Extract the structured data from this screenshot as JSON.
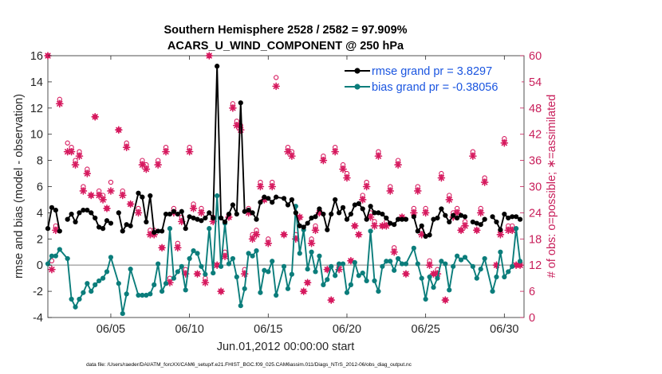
{
  "chart_data": {
    "type": "line",
    "title_line1": "Southern Hemisphere 2528 / 2582 = 97.909%",
    "title_line2": "ACARS_U_WIND_COMPONENT @ 250 hPa",
    "xlabel": "Jun.01,2012 00:00:00 start",
    "ylabel_left": "rmse and bias (model - observation)",
    "ylabel_right": "# of obs: o=possible; ∗=assimilated",
    "footnote": "data file: /Users/raeder/DAI/ATM_forcXX/CAM6_setup/f.e21.FHIST_BGC.f09_025.CAM6assim.011/Diags_NTrS_2012-06/obs_diag_output.nc",
    "xlim": [
      1,
      31.25
    ],
    "ylim_left": [
      -4,
      16
    ],
    "ylim_right": [
      0,
      60
    ],
    "x_ticks": [
      5,
      10,
      15,
      20,
      25,
      30
    ],
    "x_tick_labels": [
      "06/05",
      "06/10",
      "06/15",
      "06/20",
      "06/25",
      "06/30"
    ],
    "y_left_ticks": [
      -4,
      -2,
      0,
      2,
      4,
      6,
      8,
      10,
      12,
      14,
      16
    ],
    "y_left_tick_labels": [
      "-4",
      "-2",
      "0",
      "2",
      "4",
      "6",
      "8",
      "10",
      "12",
      "14",
      "16"
    ],
    "y_right_ticks": [
      0,
      6,
      12,
      18,
      24,
      30,
      36,
      42,
      48,
      54,
      60
    ],
    "y_right_tick_labels": [
      "0",
      "6",
      "12",
      "18",
      "24",
      "30",
      "36",
      "42",
      "48",
      "54",
      "60"
    ],
    "colors": {
      "rmse": "#000000",
      "bias": "#0b7d7b",
      "obs": "#d6195e",
      "zero": "#b0b0b0",
      "legend_text": "#1a55e0",
      "right_axis": "#c81e5a"
    },
    "series": [
      {
        "name": "rmse grand pr = 3.8297",
        "x": [
          1.0,
          1.25,
          1.5,
          1.75,
          2.25,
          2.5,
          2.75,
          3.0,
          3.25,
          3.5,
          3.75,
          4.0,
          4.25,
          4.5,
          4.75,
          5.0,
          5.5,
          5.75,
          6.0,
          6.25,
          6.75,
          7.0,
          7.25,
          7.5,
          7.75,
          8.0,
          8.25,
          8.5,
          8.75,
          9.0,
          9.25,
          9.5,
          9.75,
          10.0,
          10.25,
          10.5,
          10.75,
          11.0,
          11.25,
          11.5,
          11.75,
          12.0,
          12.25,
          12.5,
          12.75,
          13.0,
          13.25,
          13.5,
          13.75,
          14.0,
          14.25,
          14.5,
          14.75,
          15.0,
          15.25,
          15.5,
          16.0,
          16.25,
          16.5,
          16.75,
          17.0,
          17.25,
          17.5,
          17.75,
          18.0,
          18.25,
          18.5,
          18.75,
          19.0,
          19.25,
          19.5,
          19.75,
          20.0,
          20.25,
          20.5,
          20.75,
          21.0,
          21.25,
          21.5,
          21.75,
          22.0,
          22.25,
          22.5,
          22.75,
          23.0,
          23.25,
          23.5,
          23.75,
          24.25,
          24.5,
          24.75,
          25.0,
          25.25,
          25.5,
          25.75,
          26.0,
          26.25,
          26.5,
          26.75,
          27.0,
          27.25,
          27.5,
          28.0,
          28.25,
          28.5,
          28.75,
          29.25,
          29.5,
          29.75,
          30.0,
          30.25,
          30.5,
          30.75,
          31.0
        ],
        "y": [
          2.8,
          4.4,
          4.2,
          2.6,
          3.5,
          3.9,
          3.3,
          4.0,
          4.2,
          4.2,
          4.0,
          3.6,
          2.9,
          2.8,
          3.4,
          3.2,
          4.0,
          2.6,
          3.1,
          3.0,
          5.5,
          5.2,
          3.3,
          5.3,
          2.5,
          2.6,
          2.6,
          3.9,
          3.9,
          4.1,
          3.9,
          4.1,
          2.8,
          3.7,
          3.6,
          3.5,
          3.4,
          3.6,
          4.0,
          3.6,
          15.2,
          3.6,
          3.3,
          3.9,
          4.6,
          3.9,
          12.4,
          4.1,
          4.2,
          4.0,
          3.5,
          4.8,
          5.2,
          5.1,
          4.8,
          5.2,
          5.1,
          4.6,
          5.0,
          4.0,
          3.0,
          2.9,
          3.2,
          3.6,
          3.7,
          4.3,
          3.9,
          2.7,
          3.9,
          5.0,
          4.0,
          4.4,
          3.5,
          3.9,
          4.6,
          4.7,
          4.3,
          3.5,
          4.5,
          4.0,
          4.0,
          3.9,
          3.6,
          3.2,
          3.1,
          3.5,
          3.5,
          3.5,
          3.7,
          2.6,
          3.0,
          2.2,
          2.3,
          3.5,
          3.6,
          4.3,
          3.8,
          3.3,
          3.8,
          3.6,
          3.8,
          3.7,
          3.3,
          3.2,
          3.1,
          3.5,
          3.7,
          3.3,
          2.7,
          3.9,
          3.6,
          3.7,
          3.7,
          3.5
        ],
        "gaps_after_index": [
          3,
          15,
          18,
          63,
          87,
          101,
          105
        ]
      },
      {
        "name": "bias grand pr = -0.38056",
        "x": [
          1.0,
          1.25,
          1.5,
          1.75,
          2.25,
          2.5,
          2.75,
          3.0,
          3.25,
          3.5,
          3.75,
          4.0,
          4.25,
          4.5,
          4.75,
          5.0,
          5.5,
          5.75,
          6.0,
          6.25,
          6.75,
          7.0,
          7.25,
          7.5,
          7.75,
          8.0,
          8.25,
          8.5,
          8.75,
          9.0,
          9.25,
          9.5,
          9.75,
          10.0,
          10.25,
          10.5,
          10.75,
          11.0,
          11.25,
          11.5,
          11.75,
          12.0,
          12.25,
          12.5,
          12.75,
          13.0,
          13.25,
          13.5,
          13.75,
          14.0,
          14.25,
          14.5,
          14.75,
          15.0,
          15.25,
          15.5,
          16.0,
          16.25,
          16.5,
          16.75,
          17.0,
          17.25,
          17.5,
          17.75,
          18.0,
          18.25,
          18.5,
          18.75,
          19.0,
          19.25,
          19.5,
          19.75,
          20.0,
          20.25,
          20.5,
          20.75,
          21.0,
          21.25,
          21.5,
          21.75,
          22.0,
          22.25,
          22.5,
          22.75,
          23.0,
          23.25,
          23.5,
          23.75,
          24.25,
          24.5,
          24.75,
          25.0,
          25.25,
          25.5,
          25.75,
          26.0,
          26.25,
          26.5,
          26.75,
          27.0,
          27.25,
          27.5,
          28.0,
          28.25,
          28.5,
          28.75,
          29.25,
          29.5,
          29.75,
          30.0,
          30.25,
          30.5,
          30.75,
          31.0
        ],
        "y": [
          0.1,
          0.7,
          0.7,
          1.2,
          0.5,
          -2.6,
          -3.2,
          -2.6,
          -2.1,
          -1.4,
          -2.0,
          -1.5,
          -1.2,
          -1.0,
          -0.5,
          0.6,
          -1.4,
          -3.7,
          -2.2,
          -0.3,
          -2.3,
          -2.3,
          -2.3,
          -2.2,
          -1.5,
          0.1,
          -2.0,
          -1.4,
          2.8,
          -1.0,
          -0.5,
          -0.1,
          -1.9,
          0.5,
          1.1,
          0.9,
          -0.1,
          -0.7,
          2.8,
          -0.6,
          5.3,
          -0.1,
          3.2,
          0.1,
          0.5,
          -0.9,
          -3.1,
          -1.8,
          0.9,
          0.7,
          1.1,
          -2.1,
          -0.4,
          -0.5,
          0.3,
          -2.3,
          -0.1,
          -1.8,
          -0.7,
          4.5,
          0.9,
          2.7,
          -0.3,
          1.0,
          -0.5,
          0.7,
          -1.5,
          -1.1,
          -0.1,
          -0.8,
          0.1,
          0.1,
          -2.1,
          -1.5,
          0.2,
          -0.8,
          -0.6,
          -1.2,
          2.6,
          -1.2,
          -2.0,
          -0.1,
          0.3,
          0.3,
          -0.4,
          0.5,
          0.1,
          0.1,
          1.3,
          0.1,
          -1.0,
          -2.6,
          -0.9,
          -1.7,
          -1.0,
          0.3,
          0.1,
          -1.9,
          -0.1,
          0.7,
          0.4,
          0.6,
          -0.1,
          -1.0,
          -0.3,
          0.5,
          -2.0,
          -0.9,
          1.0,
          -0.9,
          -0.5,
          -0.1,
          2.8,
          0.3
        ]
      }
    ],
    "obs_possible": {
      "x": [
        1.0,
        1.25,
        1.5,
        1.75,
        2.25,
        2.5,
        2.75,
        3.0,
        3.25,
        3.5,
        3.75,
        4.0,
        4.25,
        4.5,
        4.75,
        5.0,
        5.5,
        5.75,
        6.0,
        6.25,
        6.75,
        7.0,
        7.25,
        7.5,
        7.75,
        8.0,
        8.25,
        8.5,
        8.75,
        9.0,
        9.25,
        9.5,
        9.75,
        10.0,
        10.25,
        10.5,
        10.75,
        11.0,
        11.25,
        11.5,
        11.75,
        12.0,
        12.25,
        12.5,
        12.75,
        13.0,
        13.25,
        13.5,
        13.75,
        14.0,
        14.25,
        14.5,
        14.75,
        15.0,
        15.25,
        15.5,
        16.0,
        16.25,
        16.5,
        16.75,
        17.0,
        17.25,
        17.5,
        17.75,
        18.0,
        18.25,
        18.5,
        18.75,
        19.0,
        19.25,
        19.5,
        19.75,
        20.0,
        20.25,
        20.5,
        20.75,
        21.0,
        21.25,
        21.5,
        21.75,
        22.0,
        22.25,
        22.5,
        22.75,
        23.0,
        23.25,
        23.5,
        23.75,
        24.25,
        24.5,
        24.75,
        25.0,
        25.25,
        25.5,
        25.75,
        26.0,
        26.25,
        26.5,
        26.75,
        27.0,
        27.25,
        27.5,
        28.0,
        28.25,
        28.5,
        28.75,
        29.25,
        29.5,
        29.75,
        30.0,
        30.25,
        30.5,
        30.75,
        31.0
      ],
      "y": [
        60,
        13,
        21,
        50,
        40,
        39,
        36,
        38,
        30,
        34,
        28,
        46,
        29,
        28,
        25,
        31,
        43,
        29,
        40,
        26,
        25,
        36,
        35,
        20,
        20,
        36,
        16,
        39,
        9,
        25,
        17,
        23,
        11,
        39,
        26,
        10,
        25,
        9,
        60,
        23,
        12,
        6,
        15,
        23,
        49,
        45,
        44,
        11,
        25,
        19,
        20,
        31,
        27,
        18,
        31,
        55,
        19,
        39,
        38,
        19,
        23,
        6,
        8,
        18,
        21,
        24,
        37,
        11,
        4,
        39,
        12,
        35,
        33,
        13,
        21,
        19,
        28,
        31,
        24,
        22,
        38,
        21,
        22,
        30,
        16,
        36,
        23,
        10,
        25,
        30,
        20,
        25,
        13,
        10,
        11,
        33,
        4,
        28,
        24,
        25,
        20,
        22,
        38,
        20,
        25,
        32,
        53,
        12,
        20,
        41,
        21,
        21,
        12,
        12
      ]
    },
    "obs_assimilated": {
      "x": [
        1.0,
        1.25,
        1.5,
        1.75,
        2.25,
        2.5,
        2.75,
        3.0,
        3.25,
        3.5,
        3.75,
        4.0,
        4.25,
        4.5,
        4.75,
        5.0,
        5.5,
        5.75,
        6.0,
        6.25,
        6.75,
        7.0,
        7.25,
        7.5,
        7.75,
        8.0,
        8.25,
        8.5,
        8.75,
        9.0,
        9.25,
        9.5,
        9.75,
        10.0,
        10.25,
        10.5,
        10.75,
        11.0,
        11.25,
        11.5,
        11.75,
        12.0,
        12.25,
        12.5,
        12.75,
        13.0,
        13.25,
        13.5,
        13.75,
        14.0,
        14.25,
        14.5,
        14.75,
        15.0,
        15.25,
        15.5,
        16.0,
        16.25,
        16.5,
        16.75,
        17.0,
        17.25,
        17.5,
        17.75,
        18.0,
        18.25,
        18.5,
        18.75,
        19.0,
        19.25,
        19.5,
        19.75,
        20.0,
        20.25,
        20.5,
        20.75,
        21.0,
        21.25,
        21.5,
        21.75,
        22.0,
        22.25,
        22.5,
        22.75,
        23.0,
        23.25,
        23.5,
        23.75,
        24.25,
        24.5,
        24.75,
        25.0,
        25.25,
        25.5,
        25.75,
        26.0,
        26.25,
        26.5,
        26.75,
        27.0,
        27.25,
        27.5,
        28.0,
        28.25,
        28.5,
        28.75,
        29.25,
        29.5,
        29.75,
        30.0,
        30.25,
        30.5,
        30.75,
        31.0
      ],
      "y": [
        60,
        11,
        20,
        49,
        38,
        38,
        35,
        37,
        29,
        33,
        28,
        46,
        28,
        27,
        25,
        29,
        43,
        28,
        39,
        26,
        24,
        35,
        34,
        19,
        19,
        35,
        16,
        38,
        8,
        24,
        16,
        22,
        10,
        38,
        25,
        10,
        24,
        8,
        60,
        22,
        12,
        6,
        14,
        23,
        48,
        44,
        43,
        10,
        24,
        18,
        19,
        30,
        27,
        17,
        30,
        53,
        19,
        38,
        37,
        18,
        23,
        6,
        8,
        17,
        20,
        24,
        36,
        11,
        4,
        38,
        11,
        34,
        32,
        13,
        21,
        19,
        27,
        30,
        23,
        21,
        37,
        21,
        21,
        29,
        15,
        35,
        23,
        10,
        24,
        29,
        19,
        24,
        12,
        10,
        10,
        32,
        4,
        27,
        23,
        24,
        20,
        21,
        37,
        20,
        24,
        31,
        53,
        12,
        19,
        40,
        20,
        20,
        12,
        12
      ]
    },
    "legend_position": "top-right",
    "grid": false
  }
}
